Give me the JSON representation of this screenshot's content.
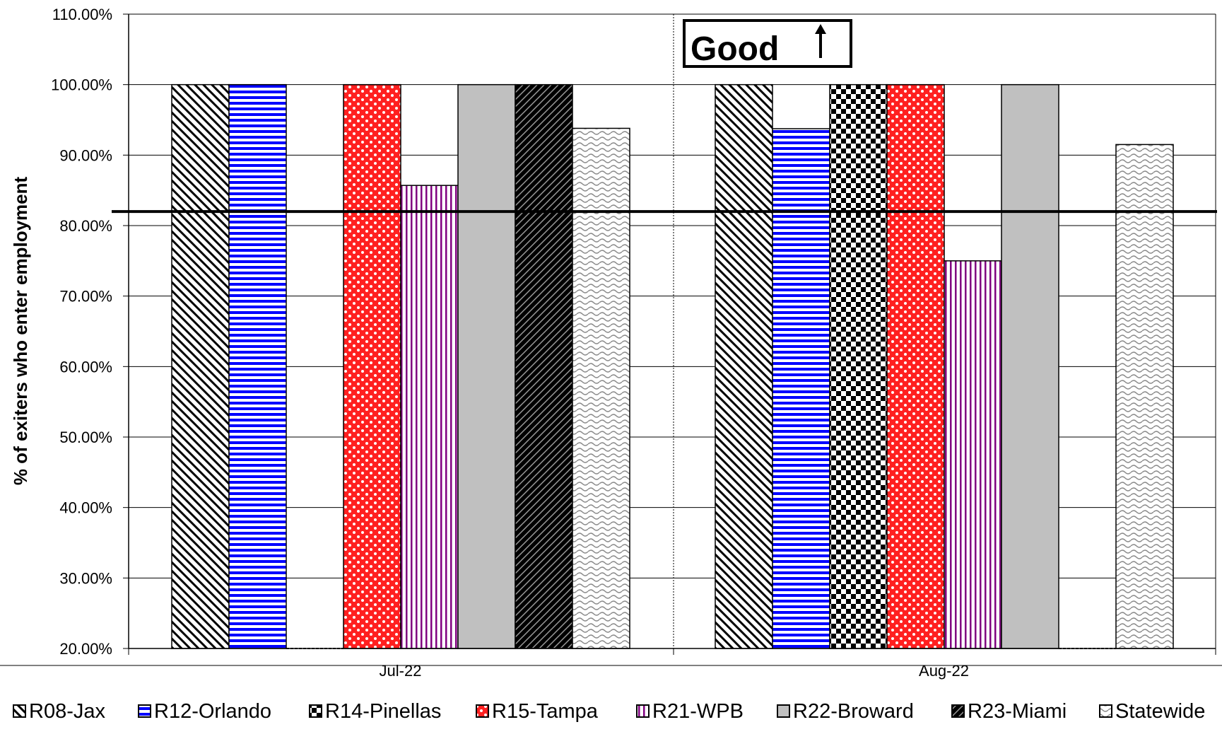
{
  "chart_data": {
    "type": "bar",
    "title": "",
    "xlabel": "",
    "ylabel": "% of exiters who enter employment",
    "ylim": [
      0.2,
      1.1
    ],
    "yticks": [
      "20.00%",
      "30.00%",
      "40.00%",
      "50.00%",
      "60.00%",
      "70.00%",
      "80.00%",
      "90.00%",
      "100.00%",
      "110.00%"
    ],
    "categories": [
      "Jul-22",
      "Aug-22"
    ],
    "series": [
      {
        "name": "R08-Jax",
        "values": [
          1.0,
          1.0
        ],
        "pattern": "diag-down",
        "color": "#000000"
      },
      {
        "name": "R12-Orlando",
        "values": [
          1.0,
          0.9375
        ],
        "pattern": "horizontal",
        "color": "#0000ff"
      },
      {
        "name": "R14-Pinellas",
        "values": [
          0.2,
          1.0
        ],
        "pattern": "checker",
        "color": "#000000"
      },
      {
        "name": "R15-Tampa",
        "values": [
          1.0,
          1.0
        ],
        "pattern": "red-dots",
        "color": "#ff0000"
      },
      {
        "name": "R21-WPB",
        "values": [
          0.857,
          0.75
        ],
        "pattern": "vertical",
        "color": "#800080"
      },
      {
        "name": "R22-Broward",
        "values": [
          1.0,
          1.0
        ],
        "pattern": "solid",
        "color": "#c0c0c0"
      },
      {
        "name": "R23-Miami",
        "values": [
          1.0,
          0.2
        ],
        "pattern": "dark-cross",
        "color": "#000000"
      },
      {
        "name": "Statewide",
        "values": [
          0.938,
          0.915
        ],
        "pattern": "wave",
        "color": "#808080"
      }
    ],
    "reference_line": 0.82,
    "annotation": "Good",
    "annotation_icon": "up-arrow-icon",
    "grid": true,
    "legend_position": "bottom"
  }
}
